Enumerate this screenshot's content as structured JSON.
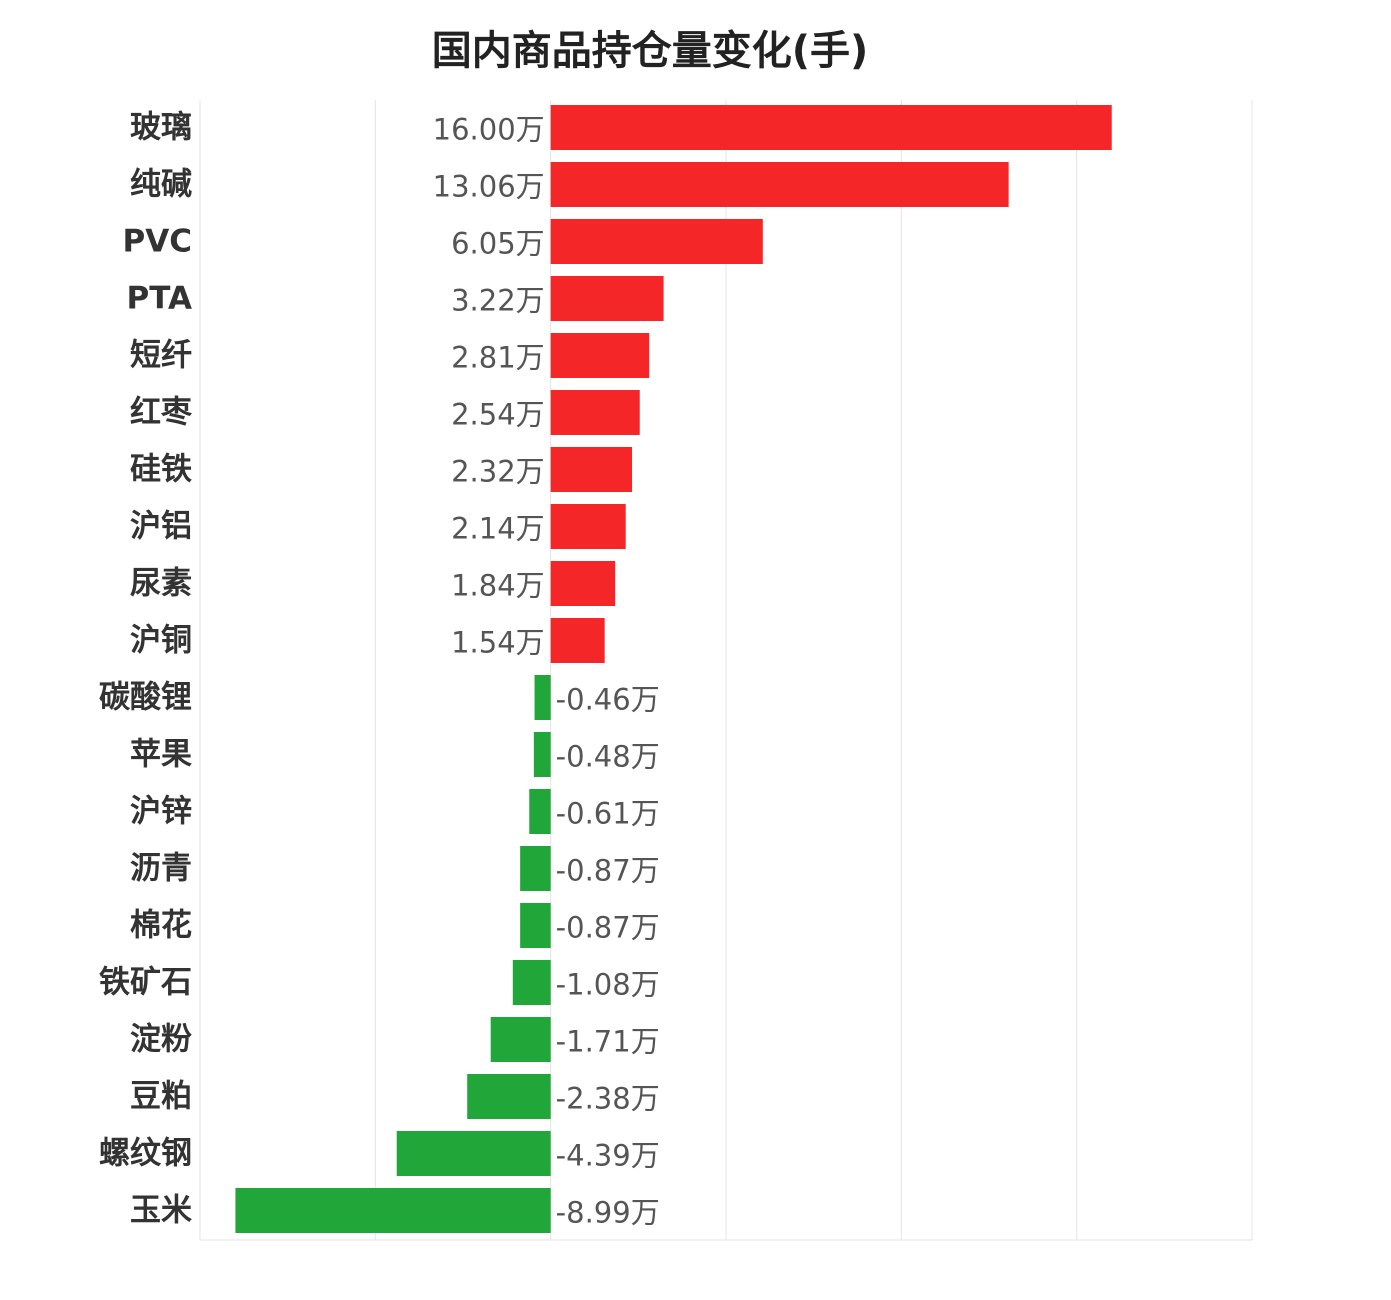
{
  "chart_data": {
    "type": "bar",
    "orientation": "horizontal",
    "title": "国内商品持仓量变化(手)",
    "unit": "万",
    "colors": {
      "positive": "#f52628",
      "negative": "#21a63a"
    },
    "xlim": [
      -10,
      20
    ],
    "grid": true,
    "categories": [
      "玻璃",
      "纯碱",
      "PVC",
      "PTA",
      "短纤",
      "红枣",
      "硅铁",
      "沪铝",
      "尿素",
      "沪铜",
      "碳酸锂",
      "苹果",
      "沪锌",
      "沥青",
      "棉花",
      "铁矿石",
      "淀粉",
      "豆粕",
      "螺纹钢",
      "玉米"
    ],
    "values": [
      16.0,
      13.06,
      6.05,
      3.22,
      2.81,
      2.54,
      2.32,
      2.14,
      1.84,
      1.54,
      -0.46,
      -0.48,
      -0.61,
      -0.87,
      -0.87,
      -1.08,
      -1.71,
      -2.38,
      -4.39,
      -8.99
    ],
    "value_labels": [
      "16.00万",
      "13.06万",
      "6.05万",
      "3.22万",
      "2.81万",
      "2.54万",
      "2.32万",
      "2.14万",
      "1.84万",
      "1.54万",
      "-0.46万",
      "-0.48万",
      "-0.61万",
      "-0.87万",
      "-0.87万",
      "-1.08万",
      "-1.71万",
      "-2.38万",
      "-4.39万",
      "-8.99万"
    ]
  }
}
